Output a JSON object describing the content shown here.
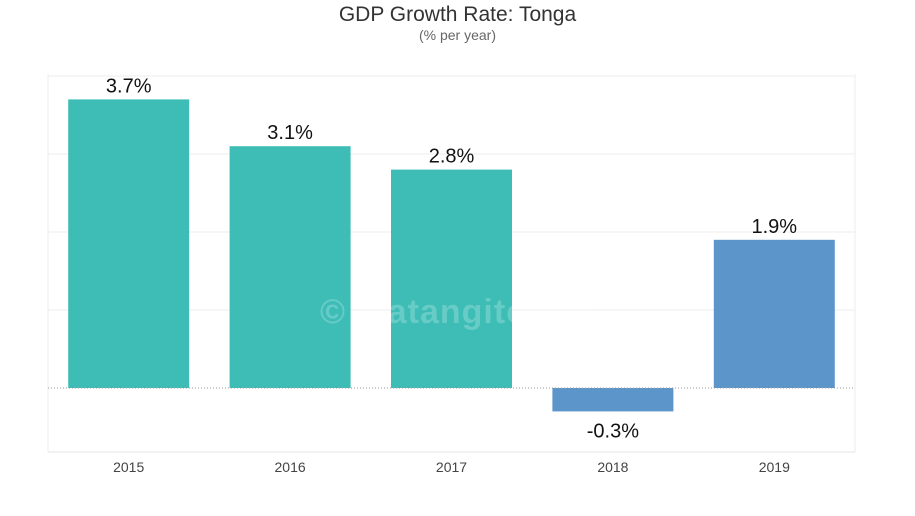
{
  "chart_data": {
    "type": "bar",
    "title": "GDP Growth Rate: Tonga",
    "subtitle": "(% per year)",
    "categories": [
      "2015",
      "2016",
      "2017",
      "2018",
      "2019"
    ],
    "values": [
      3.7,
      3.1,
      2.8,
      -0.3,
      1.9
    ],
    "data_labels": [
      "3.7%",
      "3.1%",
      "2.8%",
      "-0.3%",
      "1.9%"
    ],
    "bar_colors": [
      "#3dbdb6",
      "#3dbdb6",
      "#3dbdb6",
      "#5b95c9",
      "#5b95c9"
    ],
    "xlabel": "",
    "ylabel": "",
    "ylim": [
      -0.8,
      4
    ],
    "grid": true,
    "legend": "none"
  },
  "watermark": "© matangitonga"
}
